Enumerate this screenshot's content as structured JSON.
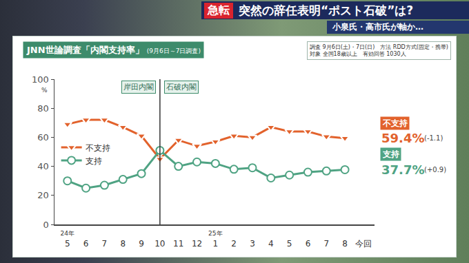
{
  "header": {
    "tag": "急転",
    "headline": "突然の辞任表明“ポスト石破”は?",
    "subheadline": "小泉氏・高市氏が軸か…"
  },
  "chart_data": {
    "type": "line",
    "title": "JNN世論調査「内閣支持率」",
    "subtitle": "(9月6日～7日調査)",
    "survey_info": [
      [
        "調査",
        "9月6日(土)・7日(日)"
      ],
      [
        "方法",
        "RDD方式(固定・携帯)"
      ],
      [
        "対象",
        "全国18歳以上"
      ],
      [
        "有効回答",
        "1030人"
      ]
    ],
    "categories": [
      "5",
      "6",
      "7",
      "8",
      "9",
      "10",
      "11",
      "12",
      "1",
      "2",
      "3",
      "4",
      "5",
      "6",
      "7",
      "8",
      "今回"
    ],
    "year_labels": [
      "24年",
      null,
      null,
      null,
      null,
      null,
      null,
      null,
      "25年",
      null,
      null,
      null,
      null,
      null,
      null,
      null,
      null
    ],
    "periods": [
      "岸田内閣",
      "石破内閣"
    ],
    "divider_category_index": 5,
    "y_unit": "%",
    "ylim": [
      0,
      100
    ],
    "yticks": [
      0,
      20,
      40,
      60,
      80,
      100
    ],
    "grid": false,
    "legend": "left",
    "series": [
      {
        "name": "不支持",
        "color": "#e2622c",
        "marker": "triangle-down",
        "values": [
          69,
          72,
          72,
          67,
          61,
          45,
          58,
          54,
          57,
          61,
          60,
          67,
          64,
          64,
          60.5,
          59.4,
          null
        ],
        "value_labels": [
          null,
          null,
          null,
          null,
          null,
          null,
          null,
          null,
          null,
          null,
          null,
          null,
          null,
          null,
          null,
          "59.4%",
          null
        ],
        "change_label": "(-1.1)"
      },
      {
        "name": "支持",
        "color": "#4fa383",
        "marker": "circle",
        "values": [
          30,
          25,
          27,
          31,
          35,
          51,
          40,
          43,
          42,
          38,
          39,
          32,
          34,
          36,
          36.8,
          37.7,
          null
        ],
        "value_labels": [
          null,
          null,
          null,
          null,
          null,
          null,
          null,
          null,
          null,
          null,
          null,
          null,
          null,
          null,
          null,
          "37.7%",
          null
        ],
        "change_label": "(+0.9)"
      }
    ]
  }
}
